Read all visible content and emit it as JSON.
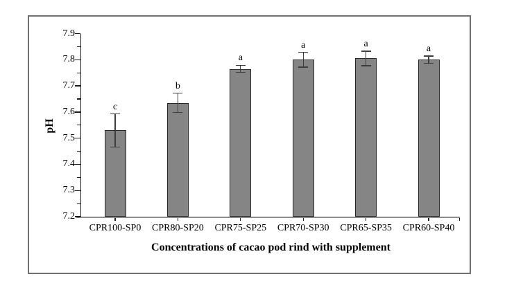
{
  "chart_data": {
    "type": "bar",
    "title": "",
    "xlabel": "Concentrations of cacao pod rind with supplement",
    "ylabel": "pH",
    "categories": [
      "CPR100-SP0",
      "CPR80-SP20",
      "CPR75-SP25",
      "CPR70-SP30",
      "CPR65-SP35",
      "CPR60-SP40"
    ],
    "values": [
      7.53,
      7.635,
      7.765,
      7.8,
      7.805,
      7.8
    ],
    "errors": [
      0.063,
      0.037,
      0.014,
      0.028,
      0.028,
      0.014
    ],
    "significance_letters": [
      "c",
      "b",
      "a",
      "a",
      "a",
      "a"
    ],
    "ylim": [
      7.2,
      7.9
    ],
    "ytick_step": 0.1,
    "yticks": [
      7.2,
      7.3,
      7.4,
      7.5,
      7.6,
      7.7,
      7.8,
      7.9
    ],
    "minor_tick_step": 0.05,
    "grid": false,
    "legend": "none",
    "colors": {
      "bar_fill": "#858585",
      "bar_border": "#262626",
      "error_bar": "#3d3d3d",
      "x_axis": "#8c8c8c",
      "y_axis": "#1a1a1a",
      "figure_border": "#6f6f6f",
      "text": "#000000"
    }
  }
}
